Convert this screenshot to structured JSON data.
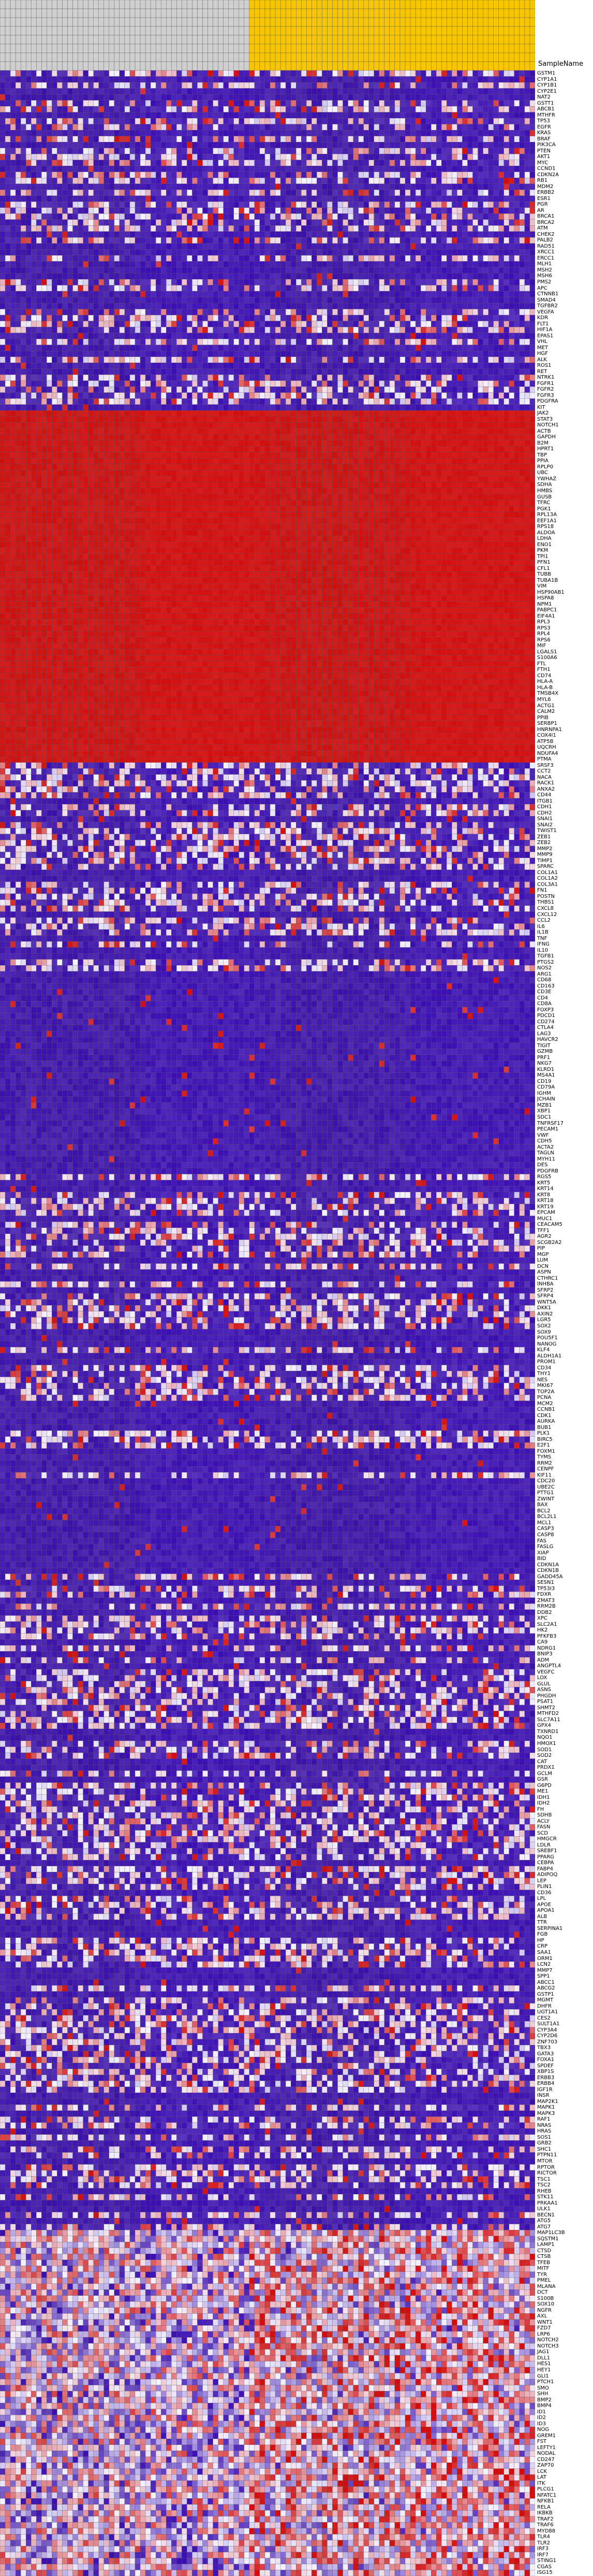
{
  "header": {
    "sample_name_label": "SampleName"
  },
  "colors": {
    "low": "#3b0fb0",
    "mid": "#f4f2ff",
    "high": "#d20f0f",
    "group_a_header": "#cfcfcf",
    "group_b_header": "#f7c600",
    "grid": "#555555"
  },
  "chart_data": {
    "type": "heatmap",
    "title": "",
    "xlabel": "",
    "ylabel": "",
    "n_columns": 103,
    "group_a_columns": 48,
    "group_b_columns": 55,
    "value_range": [
      0,
      1
    ],
    "genes": [
      "GSTM1",
      "CYP1A1",
      "CYP1B1",
      "CYP2E1",
      "NAT2",
      "GSTT1",
      "ABCB1",
      "MTHFR",
      "TP53",
      "EGFR",
      "KRAS",
      "BRAF",
      "PIK3CA",
      "PTEN",
      "AKT1",
      "MYC",
      "CCND1",
      "CDKN2A",
      "RB1",
      "MDM2",
      "ERBB2",
      "ESR1",
      "PGR",
      "AR",
      "BRCA1",
      "BRCA2",
      "ATM",
      "CHEK2",
      "PALB2",
      "RAD51",
      "XRCC1",
      "ERCC1",
      "MLH1",
      "MSH2",
      "MSH6",
      "PMS2",
      "APC",
      "CTNNB1",
      "SMAD4",
      "TGFBR2",
      "VEGFA",
      "KDR",
      "FLT1",
      "HIF1A",
      "EPAS1",
      "VHL",
      "MET",
      "HGF",
      "ALK",
      "ROS1",
      "RET",
      "NTRK1",
      "FGFR1",
      "FGFR2",
      "FGFR3",
      "PDGFRA",
      "KIT",
      "JAK2",
      "STAT3",
      "NOTCH1",
      "ACTB",
      "GAPDH",
      "B2M",
      "HPRT1",
      "TBP",
      "PPIA",
      "RPLP0",
      "UBC",
      "YWHAZ",
      "SDHA",
      "HMBS",
      "GUSB",
      "TFRC",
      "PGK1",
      "RPL13A",
      "EEF1A1",
      "RPS18",
      "ALDOA",
      "LDHA",
      "ENO1",
      "PKM",
      "TPI1",
      "PFN1",
      "CFL1",
      "TUBB",
      "TUBA1B",
      "VIM",
      "HSP90AB1",
      "HSPA8",
      "NPM1",
      "PABPC1",
      "EIF4A1",
      "RPL3",
      "RPS3",
      "RPL4",
      "RPS6",
      "MIF",
      "LGALS1",
      "S100A6",
      "FTL",
      "FTH1",
      "CD74",
      "HLA-A",
      "HLA-B",
      "TMSB4X",
      "MYL6",
      "ACTG1",
      "CALM2",
      "PPIB",
      "SERBP1",
      "HNRNPA1",
      "COX4I1",
      "ATP5B",
      "UQCRH",
      "NDUFA4",
      "PTMA",
      "SRSF3",
      "CCT2",
      "NACA",
      "RACK1",
      "ANXA2",
      "CD44",
      "ITGB1",
      "CDH1",
      "CDH2",
      "SNAI1",
      "SNAI2",
      "TWIST1",
      "ZEB1",
      "ZEB2",
      "MMP2",
      "MMP9",
      "TIMP1",
      "SPARC",
      "COL1A1",
      "COL1A2",
      "COL3A1",
      "FN1",
      "POSTN",
      "THBS1",
      "CXCL8",
      "CXCL12",
      "CCL2",
      "IL6",
      "IL1B",
      "TNF",
      "IFNG",
      "IL10",
      "TGFB1",
      "PTGS2",
      "NOS2",
      "ARG1",
      "CD68",
      "CD163",
      "CD3E",
      "CD4",
      "CD8A",
      "FOXP3",
      "PDCD1",
      "CD274",
      "CTLA4",
      "LAG3",
      "HAVCR2",
      "TIGIT",
      "GZMB",
      "PRF1",
      "NKG7",
      "KLRD1",
      "MS4A1",
      "CD19",
      "CD79A",
      "IGHM",
      "JCHAIN",
      "MZB1",
      "XBP1",
      "SDC1",
      "TNFRSF17",
      "PECAM1",
      "VWF",
      "CDH5",
      "ACTA2",
      "TAGLN",
      "MYH11",
      "DES",
      "PDGFRB",
      "RGS5",
      "KRT5",
      "KRT14",
      "KRT8",
      "KRT18",
      "KRT19",
      "EPCAM",
      "MUC1",
      "CEACAM5",
      "TFF1",
      "AGR2",
      "SCGB2A2",
      "PIP",
      "MGP",
      "LUM",
      "DCN",
      "ASPN",
      "CTHRC1",
      "INHBA",
      "SFRP2",
      "SFRP4",
      "WNT5A",
      "DKK1",
      "AXIN2",
      "LGR5",
      "SOX2",
      "SOX9",
      "POU5F1",
      "NANOG",
      "KLF4",
      "ALDH1A1",
      "PROM1",
      "CD34",
      "THY1",
      "NES",
      "MKI67",
      "TOP2A",
      "PCNA",
      "MCM2",
      "CCNB1",
      "CDK1",
      "AURKA",
      "BUB1",
      "PLK1",
      "BIRC5",
      "E2F1",
      "FOXM1",
      "TYMS",
      "RRM2",
      "CENPF",
      "KIF11",
      "CDC20",
      "UBE2C",
      "PTTG1",
      "ZWINT",
      "BAX",
      "BCL2",
      "BCL2L1",
      "MCL1",
      "CASP3",
      "CASP8",
      "FAS",
      "FASLG",
      "XIAP",
      "BID",
      "CDKN1A",
      "CDKN1B",
      "GADD45A",
      "SESN1",
      "TP53I3",
      "FDXR",
      "ZMAT3",
      "RRM2B",
      "DDB2",
      "XPC",
      "SLC2A1",
      "HK2",
      "PFKFB3",
      "CA9",
      "NDRG1",
      "BNIP3",
      "ADM",
      "ANGPTL4",
      "VEGFC",
      "LOX",
      "GLUL",
      "ASNS",
      "PHGDH",
      "PSAT1",
      "SHMT2",
      "MTHFD2",
      "SLC7A11",
      "GPX4",
      "TXNRD1",
      "NQO1",
      "HMOX1",
      "SOD1",
      "SOD2",
      "CAT",
      "PRDX1",
      "GCLM",
      "GSR",
      "G6PD",
      "ME1",
      "IDH1",
      "IDH2",
      "FH",
      "SDHB",
      "ACLY",
      "FASN",
      "SCD",
      "HMGCR",
      "LDLR",
      "SREBF1",
      "PPARG",
      "CEBPA",
      "FABP4",
      "ADIPOQ",
      "LEP",
      "PLIN1",
      "CD36",
      "LPL",
      "APOE",
      "APOA1",
      "ALB",
      "TTR",
      "SERPINA1",
      "FGB",
      "HP",
      "CRP",
      "SAA1",
      "ORM1",
      "LCN2",
      "MMP7",
      "SPP1",
      "ABCC1",
      "ABCG2",
      "GSTP1",
      "MGMT",
      "DHFR",
      "UGT1A1",
      "CES2",
      "SULT1A1",
      "CYP3A4",
      "CYP2D6",
      "ZNF703",
      "TBX3",
      "GATA3",
      "FOXA1",
      "SPDEF",
      "XBP1S",
      "ERBB3",
      "ERBB4",
      "IGF1R",
      "INSR",
      "MAP2K1",
      "MAPK1",
      "MAPK3",
      "RAF1",
      "NRAS",
      "HRAS",
      "SOS1",
      "GRB2",
      "SHC1",
      "PTPN11",
      "MTOR",
      "RPTOR",
      "RICTOR",
      "TSC1",
      "TSC2",
      "RHEB",
      "STK11",
      "PRKAA1",
      "ULK1",
      "BECN1",
      "ATG5",
      "ATG7",
      "MAP1LC3B",
      "SQSTM1",
      "LAMP1",
      "CTSD",
      "CTSB",
      "TFEB",
      "MITF",
      "TYR",
      "PMEL",
      "MLANA",
      "DCT",
      "S100B",
      "SOX10",
      "NGFR",
      "AXL",
      "WNT1",
      "FZD7",
      "LRP6",
      "NOTCH2",
      "NOTCH3",
      "JAG1",
      "DLL1",
      "HES1",
      "HEY1",
      "GLI1",
      "PTCH1",
      "SMO",
      "SHH",
      "BMP2",
      "BMP4",
      "ID1",
      "ID2",
      "ID3",
      "NOG",
      "GREM1",
      "FST",
      "LEFTY1",
      "NODAL",
      "CD247",
      "ZAP70",
      "LCK",
      "LAT",
      "ITK",
      "PLCG1",
      "NFATC1",
      "NFKB1",
      "RELA",
      "IKBKB",
      "TRAF2",
      "TRAF6",
      "MYD88",
      "TLR4",
      "TLR2",
      "IRF3",
      "IRF7",
      "STING1",
      "CGAS",
      "ISG15"
    ]
  }
}
